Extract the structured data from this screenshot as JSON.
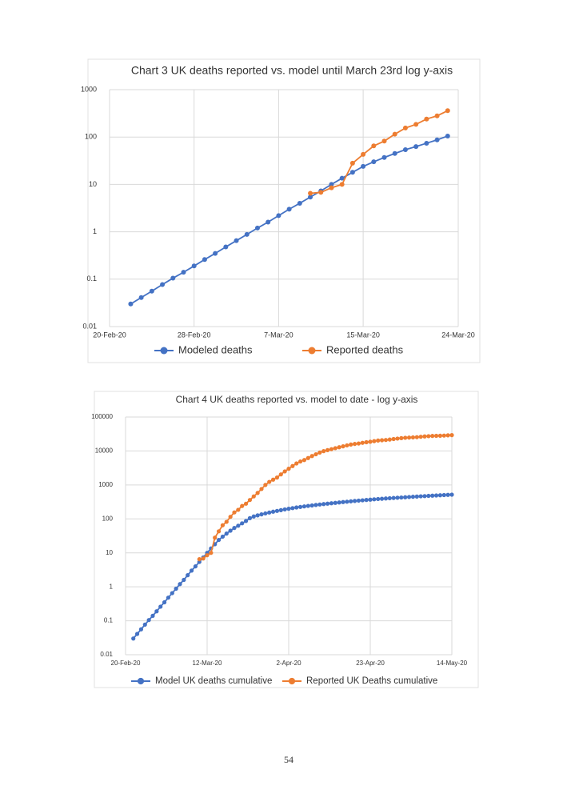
{
  "chart_data": [
    {
      "type": "line",
      "title": "Chart 3 UK deaths reported vs. model until March 23rd log y-axis",
      "log_y": true,
      "grid": true,
      "legend": "bottom",
      "x": [
        "2020-02-22",
        "2020-02-23",
        "2020-02-24",
        "2020-02-25",
        "2020-02-26",
        "2020-02-27",
        "2020-02-28",
        "2020-02-29",
        "2020-03-01",
        "2020-03-02",
        "2020-03-03",
        "2020-03-04",
        "2020-03-05",
        "2020-03-06",
        "2020-03-07",
        "2020-03-08",
        "2020-03-09",
        "2020-03-10",
        "2020-03-11",
        "2020-03-12",
        "2020-03-13",
        "2020-03-14",
        "2020-03-15",
        "2020-03-16",
        "2020-03-17",
        "2020-03-18",
        "2020-03-19",
        "2020-03-20",
        "2020-03-21",
        "2020-03-22",
        "2020-03-23"
      ],
      "xlim": [
        "2020-02-20",
        "2020-03-24"
      ],
      "xticks": [
        {
          "value": "2020-02-20",
          "label": "20-Feb-20"
        },
        {
          "value": "2020-02-28",
          "label": "28-Feb-20"
        },
        {
          "value": "2020-03-07",
          "label": "7-Mar-20"
        },
        {
          "value": "2020-03-15",
          "label": "15-Mar-20"
        },
        {
          "value": "2020-03-24",
          "label": "24-Mar-20"
        }
      ],
      "ylim": [
        0.01,
        1000
      ],
      "yticks": [
        0.01,
        0.1,
        1,
        10,
        100,
        1000
      ],
      "series": [
        {
          "name": "Modeled deaths",
          "color": "#4472c4",
          "values": [
            0.03,
            0.041,
            0.056,
            0.077,
            0.105,
            0.14,
            0.19,
            0.26,
            0.35,
            0.48,
            0.65,
            0.88,
            1.2,
            1.6,
            2.2,
            3.0,
            4.0,
            5.4,
            7.3,
            10,
            13.5,
            18,
            24,
            30,
            37,
            45,
            54,
            63,
            74,
            87,
            105
          ]
        },
        {
          "name": "Reported deaths",
          "color": "#ed7d31",
          "values": [
            null,
            null,
            null,
            null,
            null,
            null,
            null,
            null,
            null,
            null,
            null,
            null,
            null,
            null,
            null,
            null,
            null,
            6.5,
            6.8,
            8.5,
            10,
            28,
            43,
            65,
            82,
            115,
            155,
            185,
            240,
            280,
            360
          ]
        }
      ]
    },
    {
      "type": "line",
      "title": "Chart 4 UK deaths reported vs. model to date - log y-axis",
      "log_y": true,
      "grid": true,
      "legend": "bottom",
      "x": [
        "2020-02-22",
        "2020-02-23",
        "2020-02-24",
        "2020-02-25",
        "2020-02-26",
        "2020-02-27",
        "2020-02-28",
        "2020-02-29",
        "2020-03-01",
        "2020-03-02",
        "2020-03-03",
        "2020-03-04",
        "2020-03-05",
        "2020-03-06",
        "2020-03-07",
        "2020-03-08",
        "2020-03-09",
        "2020-03-10",
        "2020-03-11",
        "2020-03-12",
        "2020-03-13",
        "2020-03-14",
        "2020-03-15",
        "2020-03-16",
        "2020-03-17",
        "2020-03-18",
        "2020-03-19",
        "2020-03-20",
        "2020-03-21",
        "2020-03-22",
        "2020-03-23",
        "2020-03-24",
        "2020-03-25",
        "2020-03-26",
        "2020-03-27",
        "2020-03-28",
        "2020-03-29",
        "2020-03-30",
        "2020-03-31",
        "2020-04-01",
        "2020-04-02",
        "2020-04-03",
        "2020-04-04",
        "2020-04-05",
        "2020-04-06",
        "2020-04-07",
        "2020-04-08",
        "2020-04-09",
        "2020-04-10",
        "2020-04-11",
        "2020-04-12",
        "2020-04-13",
        "2020-04-14",
        "2020-04-15",
        "2020-04-16",
        "2020-04-17",
        "2020-04-18",
        "2020-04-19",
        "2020-04-20",
        "2020-04-21",
        "2020-04-22",
        "2020-04-23",
        "2020-04-24",
        "2020-04-25",
        "2020-04-26",
        "2020-04-27",
        "2020-04-28",
        "2020-04-29",
        "2020-04-30",
        "2020-05-01",
        "2020-05-02",
        "2020-05-03",
        "2020-05-04",
        "2020-05-05",
        "2020-05-06",
        "2020-05-07",
        "2020-05-08",
        "2020-05-09",
        "2020-05-10",
        "2020-05-11",
        "2020-05-12",
        "2020-05-13",
        "2020-05-14"
      ],
      "xlim": [
        "2020-02-20",
        "2020-05-14"
      ],
      "xticks": [
        {
          "value": "2020-02-20",
          "label": "20-Feb-20"
        },
        {
          "value": "2020-03-12",
          "label": "12-Mar-20"
        },
        {
          "value": "2020-04-02",
          "label": "2-Apr-20"
        },
        {
          "value": "2020-04-23",
          "label": "23-Apr-20"
        },
        {
          "value": "2020-05-14",
          "label": "14-May-20"
        }
      ],
      "ylim": [
        0.01,
        100000
      ],
      "yticks": [
        0.01,
        0.1,
        1,
        10,
        100,
        1000,
        10000,
        100000
      ],
      "series": [
        {
          "name": "Model UK deaths cumulative",
          "color": "#4472c4",
          "values": [
            0.03,
            0.041,
            0.056,
            0.077,
            0.105,
            0.14,
            0.19,
            0.26,
            0.35,
            0.48,
            0.65,
            0.88,
            1.2,
            1.6,
            2.2,
            3.0,
            4.0,
            5.4,
            7.3,
            10,
            13.5,
            18,
            24,
            30,
            37,
            45,
            54,
            63,
            74,
            87,
            105,
            118,
            127,
            136,
            145,
            154,
            163,
            172,
            181,
            190,
            199,
            208,
            217,
            225,
            233,
            241,
            249,
            257,
            265,
            273,
            281,
            289,
            297,
            305,
            313,
            321,
            329,
            337,
            345,
            353,
            361,
            369,
            377,
            385,
            392,
            399,
            406,
            413,
            420,
            427,
            434,
            441,
            448,
            455,
            462,
            469,
            476,
            483,
            490,
            497,
            504,
            511,
            518
          ]
        },
        {
          "name": "Reported UK Deaths cumulative",
          "color": "#ed7d31",
          "values": [
            null,
            null,
            null,
            null,
            null,
            null,
            null,
            null,
            null,
            null,
            null,
            null,
            null,
            null,
            null,
            null,
            null,
            6.5,
            6.8,
            8.5,
            10,
            28,
            43,
            65,
            82,
            115,
            155,
            185,
            240,
            280,
            360,
            460,
            580,
            760,
            1000,
            1230,
            1430,
            1650,
            2040,
            2500,
            3000,
            3600,
            4300,
            4900,
            5400,
            6200,
            7100,
            8000,
            9000,
            9900,
            10600,
            11300,
            12100,
            12900,
            13700,
            14600,
            15500,
            16100,
            16600,
            17400,
            18100,
            18700,
            19500,
            20300,
            20700,
            21100,
            21700,
            22500,
            23200,
            23900,
            24500,
            24800,
            25100,
            25500,
            26200,
            26800,
            27300,
            27700,
            27900,
            28100,
            28400,
            28900,
            29300
          ]
        }
      ]
    }
  ],
  "page_number": "54"
}
